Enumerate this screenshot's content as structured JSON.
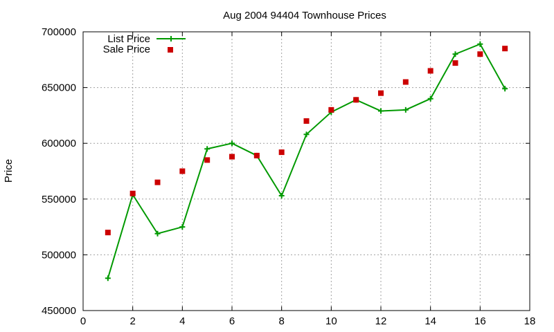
{
  "chart_data": {
    "type": "line",
    "title": "Aug 2004 94404 Townhouse Prices",
    "xlabel": "",
    "ylabel": "Price",
    "xlim": [
      0,
      18
    ],
    "ylim": [
      450000,
      700000
    ],
    "xticks": [
      0,
      2,
      4,
      6,
      8,
      10,
      12,
      14,
      16,
      18
    ],
    "yticks": [
      450000,
      500000,
      550000,
      600000,
      650000,
      700000
    ],
    "grid": true,
    "legend_position": "top-left",
    "series": [
      {
        "name": "List Price",
        "style": "linespoints",
        "color": "#009900",
        "marker": "plus",
        "x": [
          1,
          2,
          3,
          4,
          5,
          6,
          7,
          8,
          9,
          10,
          11,
          12,
          13,
          14,
          15,
          16,
          17
        ],
        "y": [
          479000,
          554000,
          519000,
          525000,
          595000,
          600000,
          589000,
          553000,
          608000,
          628000,
          639000,
          629000,
          630000,
          640000,
          680000,
          689000,
          649000
        ]
      },
      {
        "name": "Sale Price",
        "style": "points",
        "color": "#cc0000",
        "marker": "square",
        "x": [
          1,
          2,
          3,
          4,
          5,
          6,
          7,
          8,
          9,
          10,
          11,
          12,
          13,
          14,
          15,
          16,
          17
        ],
        "y": [
          520000,
          555000,
          565000,
          575000,
          585000,
          588000,
          589000,
          592000,
          620000,
          630000,
          639000,
          645000,
          655000,
          665000,
          672000,
          680000,
          685000
        ]
      }
    ]
  }
}
